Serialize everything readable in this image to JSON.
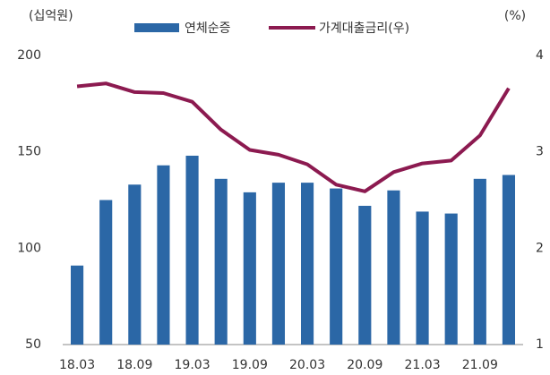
{
  "chart_data": {
    "type": "bar_line",
    "y_label": "(십억원)",
    "y2_label": "(%)",
    "categories": [
      "18.03",
      null,
      "18.09",
      null,
      "19.03",
      null,
      "19.09",
      null,
      "20.03",
      null,
      "20.09",
      null,
      "21.03",
      null,
      "21.09",
      null
    ],
    "series": [
      {
        "name": "연체순증",
        "type": "bar",
        "color": "#2b67a6",
        "values": [
          91,
          125,
          133,
          143,
          148,
          136,
          129,
          134,
          134,
          131,
          122,
          130,
          119,
          118,
          136,
          138
        ]
      },
      {
        "name": "가계대출금리(우)",
        "type": "line",
        "axis": "y2",
        "color": "#8c1a50",
        "values": [
          3.68,
          3.71,
          3.62,
          3.61,
          3.52,
          3.23,
          3.02,
          2.97,
          2.87,
          2.66,
          2.59,
          2.79,
          2.88,
          2.91,
          3.17,
          3.66
        ]
      }
    ],
    "ylim": [
      50,
      200
    ],
    "yticks": [
      50,
      100,
      150,
      200
    ],
    "y2lim": [
      1,
      4
    ],
    "y2ticks": [
      1,
      2,
      3,
      4
    ]
  }
}
